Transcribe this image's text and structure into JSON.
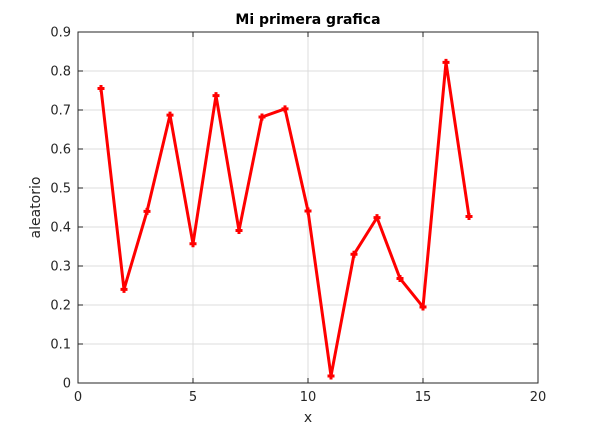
{
  "chart_data": {
    "type": "line",
    "title": "Mi primera grafica",
    "xlabel": "x",
    "ylabel": "aleatorio",
    "xlim": [
      0,
      20
    ],
    "ylim": [
      0,
      0.9
    ],
    "xticks": [
      0,
      5,
      10,
      15,
      20
    ],
    "yticks": [
      0,
      0.1,
      0.2,
      0.3,
      0.4,
      0.5,
      0.6,
      0.7,
      0.8,
      0.9
    ],
    "grid": true,
    "marker": "plus",
    "line_color": "#ff0000",
    "x": [
      1,
      2,
      3,
      4,
      5,
      6,
      7,
      8,
      9,
      10,
      11,
      12,
      13,
      14,
      15,
      16,
      17
    ],
    "series": [
      {
        "values": [
          0.755,
          0.24,
          0.44,
          0.687,
          0.357,
          0.737,
          0.391,
          0.682,
          0.703,
          0.441,
          0.018,
          0.33,
          0.424,
          0.268,
          0.195,
          0.822,
          0.427
        ]
      }
    ]
  }
}
